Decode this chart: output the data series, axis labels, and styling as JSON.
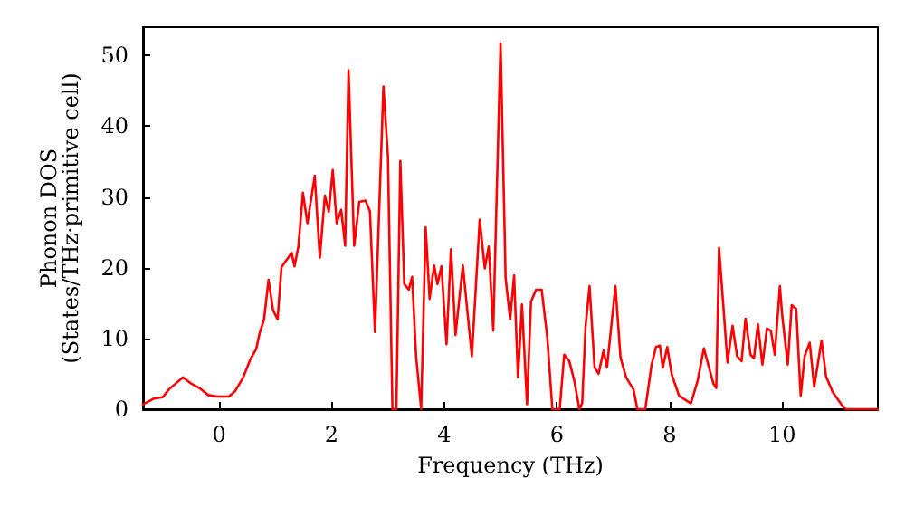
{
  "chart_data": {
    "type": "line",
    "xlabel": "Frequency (THz)",
    "ylabel": "Phonon DOS\n(States/THz·primitive cell)",
    "xlim": [
      -1.35,
      11.7
    ],
    "ylim": [
      0,
      54
    ],
    "xticks": [
      0,
      2,
      4,
      6,
      8,
      10
    ],
    "yticks": [
      0,
      10,
      20,
      30,
      40,
      50
    ],
    "grid": false,
    "marker": "none",
    "line_style": "solid",
    "series": [
      {
        "color": "#ff0000",
        "x": [
          -1.35,
          -1.16,
          -1.0,
          -0.89,
          -0.64,
          -0.51,
          -0.35,
          -0.19,
          -0.03,
          0.18,
          0.29,
          0.43,
          0.56,
          0.66,
          0.72,
          0.8,
          0.88,
          0.96,
          1.04,
          1.11,
          1.29,
          1.34,
          1.41,
          1.49,
          1.57,
          1.7,
          1.79,
          1.88,
          1.95,
          2.02,
          2.09,
          2.17,
          2.24,
          2.3,
          2.4,
          2.49,
          2.6,
          2.68,
          2.77,
          2.92,
          3.0,
          3.08,
          3.15,
          3.22,
          3.29,
          3.37,
          3.43,
          3.5,
          3.59,
          3.67,
          3.74,
          3.82,
          3.88,
          3.95,
          4.04,
          4.12,
          4.2,
          4.33,
          4.49,
          4.63,
          4.72,
          4.79,
          4.87,
          5.0,
          5.09,
          5.17,
          5.24,
          5.31,
          5.38,
          5.47,
          5.54,
          5.63,
          5.73,
          5.83,
          5.92,
          6.05,
          6.13,
          6.22,
          6.31,
          6.4,
          6.45,
          6.51,
          6.58,
          6.67,
          6.74,
          6.83,
          6.89,
          7.04,
          7.13,
          7.23,
          7.36,
          7.43,
          7.57,
          7.68,
          7.76,
          7.83,
          7.88,
          7.96,
          8.04,
          8.17,
          8.38,
          8.5,
          8.61,
          8.78,
          8.83,
          8.88,
          9.03,
          9.12,
          9.2,
          9.28,
          9.35,
          9.44,
          9.5,
          9.57,
          9.65,
          9.73,
          9.8,
          9.87,
          9.96,
          10.0,
          10.1,
          10.17,
          10.25,
          10.33,
          10.4,
          10.49,
          10.57,
          10.7,
          10.78,
          10.9,
          11.05,
          11.13,
          11.7
        ],
        "values": [
          0.7,
          1.5,
          1.7,
          2.8,
          4.5,
          3.7,
          3.0,
          2.0,
          1.8,
          1.8,
          2.6,
          4.5,
          7.1,
          8.5,
          10.7,
          12.7,
          18.3,
          14.0,
          12.7,
          20.1,
          22.1,
          20.2,
          23.0,
          30.6,
          26.3,
          33.0,
          21.4,
          30.2,
          27.9,
          33.8,
          26.3,
          28.2,
          23.1,
          47.9,
          23.1,
          29.3,
          29.5,
          28.0,
          10.9,
          45.6,
          35.7,
          0,
          0,
          35.1,
          17.7,
          16.9,
          18.7,
          7.5,
          0,
          25.7,
          15.6,
          20.3,
          17.7,
          20.2,
          9.2,
          22.6,
          10.5,
          20.3,
          7.5,
          26.8,
          19.9,
          23.0,
          11.1,
          51.7,
          18.5,
          12.7,
          18.9,
          4.5,
          14.8,
          0.7,
          15.2,
          16.9,
          16.9,
          10.1,
          0,
          0,
          7.7,
          6.8,
          4.0,
          0,
          0.9,
          11.8,
          17.4,
          5.9,
          5.0,
          8.3,
          5.9,
          17.4,
          7.3,
          4.5,
          2.8,
          0,
          0,
          6.2,
          8.8,
          9.0,
          5.9,
          8.8,
          4.9,
          1.9,
          0.8,
          4.0,
          8.6,
          3.6,
          3.0,
          22.8,
          6.6,
          11.8,
          7.5,
          6.8,
          12.8,
          7.7,
          7.2,
          12.0,
          6.3,
          11.4,
          11.1,
          7.7,
          17.4,
          13.4,
          6.3,
          14.7,
          14.2,
          1.9,
          7.5,
          9.4,
          3.2,
          9.7,
          4.6,
          2.4,
          0.7,
          0,
          0
        ]
      }
    ]
  }
}
